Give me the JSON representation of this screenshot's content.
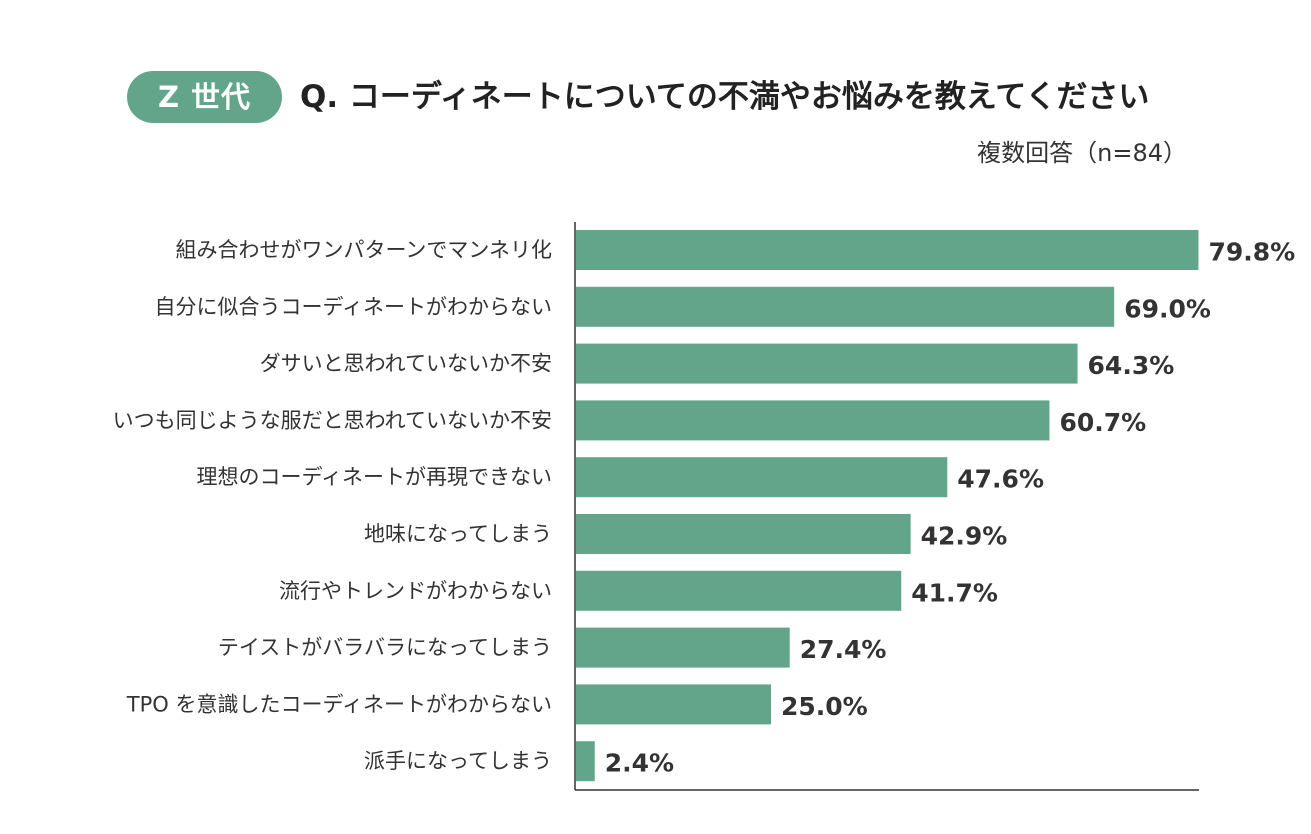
{
  "header": {
    "badge": "Z 世代",
    "question": "Q. コーディネートについての不満やお悩みを教えてください",
    "note": "複数回答（n=84）"
  },
  "colors": {
    "bar": "#62a58a",
    "badge": "#62a58a",
    "axis": "#333333"
  },
  "chart_data": {
    "type": "bar",
    "orientation": "horizontal",
    "title": "Q. コーディネートについての不満やお悩みを教えてください",
    "categories": [
      "組み合わせがワンパターンでマンネリ化",
      "自分に似合うコーディネートがわからない",
      "ダサいと思われていないか不安",
      "いつも同じような服だと思われていないか不安",
      "理想のコーディネートが再現できない",
      "地味になってしまう",
      "流行やトレンドがわからない",
      "テイストがバラバラになってしまう",
      "TPO を意識したコーディネートがわからない",
      "派手になってしまう"
    ],
    "values": [
      79.8,
      69.0,
      64.3,
      60.7,
      47.6,
      42.9,
      41.7,
      27.4,
      25.0,
      2.4
    ],
    "value_labels": [
      "79.8%",
      "69.0%",
      "64.3%",
      "60.7%",
      "47.6%",
      "42.9%",
      "41.7%",
      "27.4%",
      "25.0%",
      "2.4%"
    ],
    "xlim": [
      0,
      80
    ],
    "unit": "%",
    "grid": false
  }
}
